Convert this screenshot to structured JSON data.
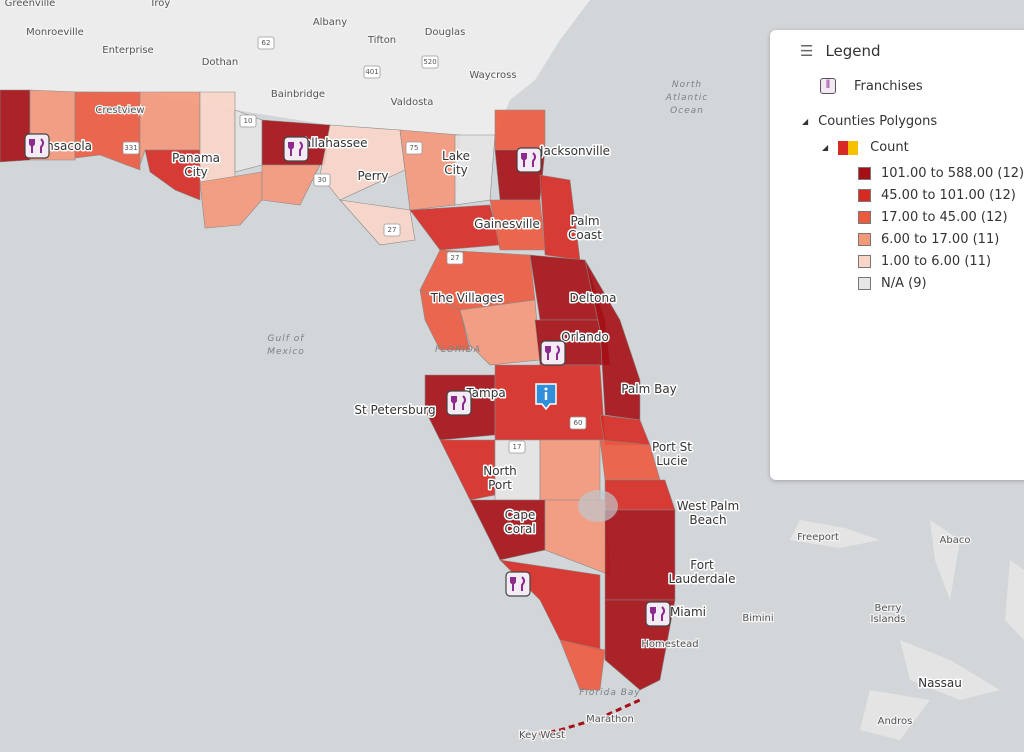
{
  "legend": {
    "title": "Legend",
    "layers": [
      {
        "name": "Franchises"
      },
      {
        "name": "Counties Polygons",
        "sublayer": {
          "name": "Count",
          "classes": [
            {
              "label": "101.00 to 588.00 (12)",
              "color": "#a50f15"
            },
            {
              "label": "45.00 to 101.00 (12)",
              "color": "#d62a22"
            },
            {
              "label": "17.00 to 45.00 (12)",
              "color": "#ec5a3e"
            },
            {
              "label": "6.00 to 17.00 (11)",
              "color": "#f5987a"
            },
            {
              "label": "1.00 to 6.00 (11)",
              "color": "#f9d5c8"
            },
            {
              "label": "N/A (9)",
              "color": "#e6e6e6"
            }
          ]
        }
      }
    ]
  },
  "map": {
    "places": [
      {
        "lines": [
          "Greenville"
        ]
      },
      {
        "lines": [
          "Troy"
        ]
      },
      {
        "lines": [
          "Monroeville"
        ]
      },
      {
        "lines": [
          "Enterprise"
        ]
      },
      {
        "lines": [
          "Dothan"
        ]
      },
      {
        "lines": [
          "Albany"
        ]
      },
      {
        "lines": [
          "Tifton"
        ]
      },
      {
        "lines": [
          "Douglas"
        ]
      },
      {
        "lines": [
          "Waycross"
        ]
      },
      {
        "lines": [
          "Bainbridge"
        ]
      },
      {
        "lines": [
          "Valdosta"
        ]
      },
      {
        "lines": [
          "Crestview"
        ]
      },
      {
        "lines": [
          "Freeport"
        ]
      },
      {
        "lines": [
          "Abaco"
        ]
      },
      {
        "lines": [
          "Bimini"
        ]
      },
      {
        "lines": [
          "Berry",
          "Islands"
        ]
      },
      {
        "lines": [
          "Homestead"
        ]
      },
      {
        "lines": [
          "Marathon"
        ]
      },
      {
        "lines": [
          "Andros"
        ]
      },
      {
        "lines": [
          "Key West"
        ]
      }
    ],
    "cities": [
      {
        "lines": [
          "Pensacola"
        ]
      },
      {
        "lines": [
          "Panama",
          "City"
        ]
      },
      {
        "lines": [
          "Tallahassee"
        ]
      },
      {
        "lines": [
          "Perry"
        ]
      },
      {
        "lines": [
          "Lake",
          "City"
        ]
      },
      {
        "lines": [
          "Jacksonville"
        ]
      },
      {
        "lines": [
          "Palm",
          "Coast"
        ]
      },
      {
        "lines": [
          "Gainesville"
        ]
      },
      {
        "lines": [
          "Deltona"
        ]
      },
      {
        "lines": [
          "The Villages"
        ]
      },
      {
        "lines": [
          "Orlando"
        ]
      },
      {
        "lines": [
          "Palm Bay"
        ]
      },
      {
        "lines": [
          "Tampa"
        ]
      },
      {
        "lines": [
          "St Petersburg"
        ]
      },
      {
        "lines": [
          "Port St",
          "Lucie"
        ]
      },
      {
        "lines": [
          "North",
          "Port"
        ]
      },
      {
        "lines": [
          "West Palm",
          "Beach"
        ]
      },
      {
        "lines": [
          "Cape",
          "Coral"
        ]
      },
      {
        "lines": [
          "Fort",
          "Lauderdale"
        ]
      },
      {
        "lines": [
          "Miami"
        ]
      },
      {
        "lines": [
          "Nassau"
        ]
      }
    ],
    "water": [
      {
        "lines": [
          "North",
          "Atlantic",
          "Ocean"
        ]
      },
      {
        "lines": [
          "Gulf of",
          "Mexico"
        ]
      },
      {
        "lines": [
          "Florida Bay"
        ]
      },
      {
        "lines": [
          "FLORIDA"
        ]
      }
    ],
    "shields": [
      "62",
      "401",
      "520",
      "331",
      "10",
      "75",
      "30",
      "27",
      "27",
      "17",
      "60"
    ]
  }
}
